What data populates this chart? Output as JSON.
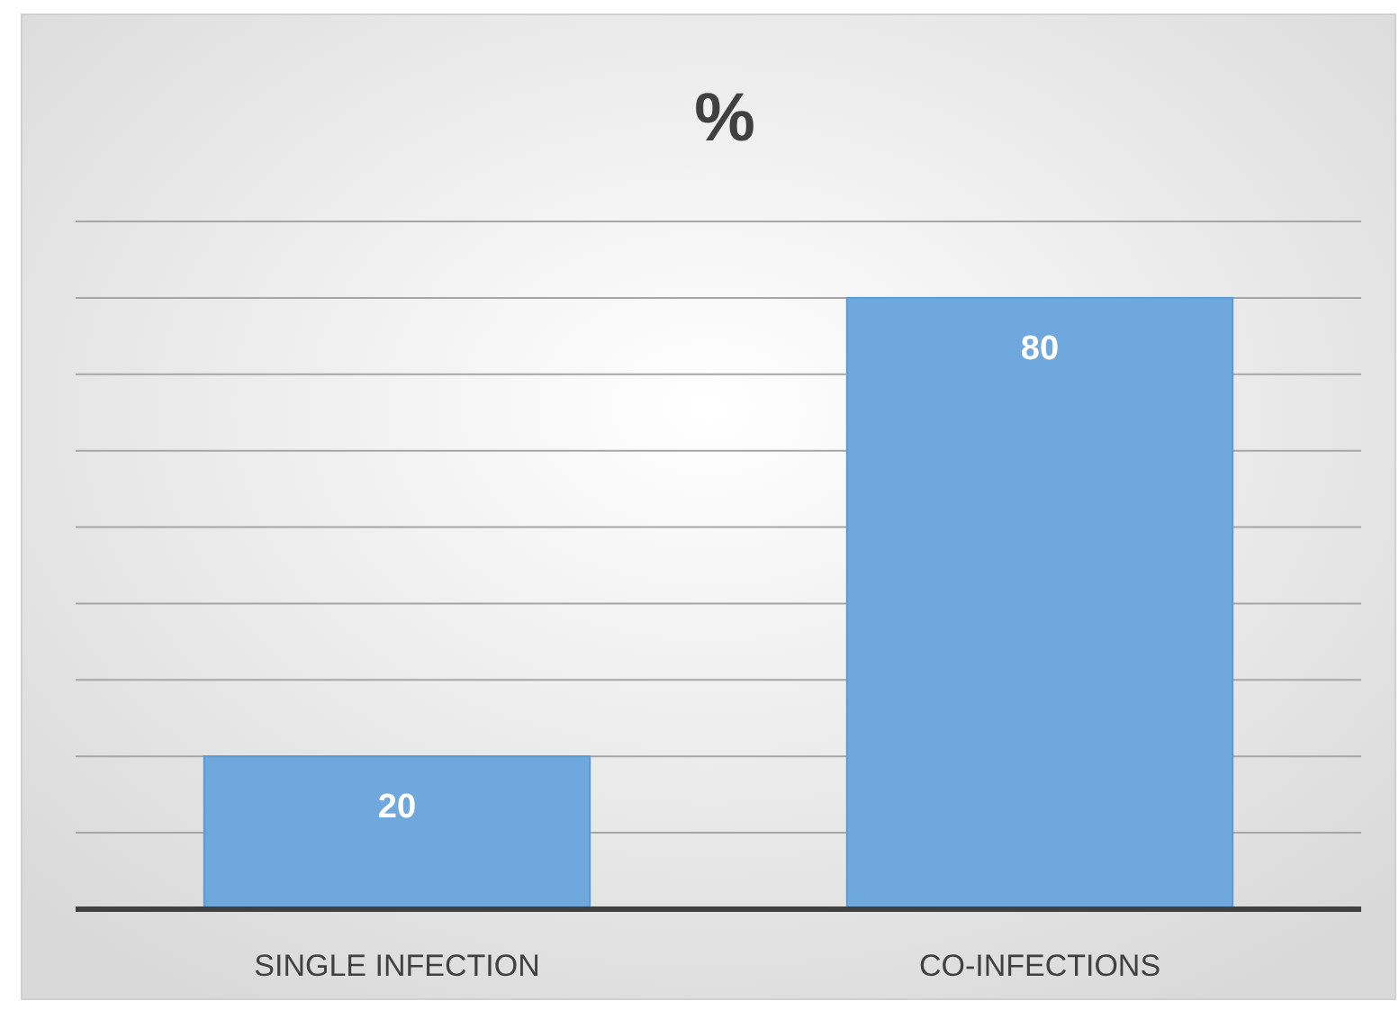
{
  "chart_data": {
    "type": "bar",
    "title": "%",
    "categories": [
      "SINGLE INFECTION",
      "CO-INFECTIONS"
    ],
    "values": [
      20,
      80
    ],
    "color": "#6fa8dc",
    "ylim": [
      0,
      90
    ],
    "yticks": [
      {
        "value": 0,
        "label": null
      },
      {
        "value": 10,
        "label": null
      },
      {
        "value": 20,
        "label": null
      },
      {
        "value": 30,
        "label": null
      },
      {
        "value": 40,
        "label": null
      },
      {
        "value": 50,
        "label": null
      },
      {
        "value": 60,
        "label": null
      },
      {
        "value": 70,
        "label": null
      },
      {
        "value": 80,
        "label": null
      },
      {
        "value": 90,
        "label": null
      }
    ],
    "tick_labels": "x",
    "grid": "y",
    "data_labels": true
  }
}
